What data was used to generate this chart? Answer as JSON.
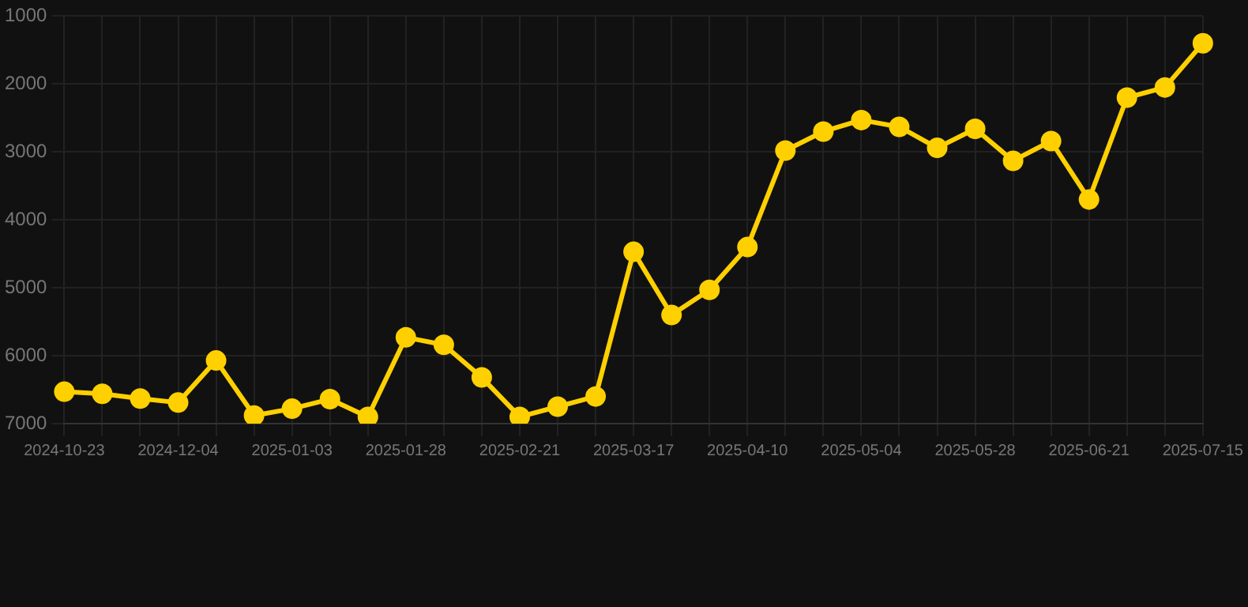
{
  "chart_data": {
    "type": "line",
    "categories": [
      "2024-10-23",
      null,
      null,
      "2024-12-04",
      null,
      null,
      "2025-01-03",
      null,
      null,
      "2025-01-28",
      null,
      null,
      "2025-02-21",
      null,
      null,
      "2025-03-17",
      null,
      null,
      "2025-04-10",
      null,
      null,
      "2025-05-04",
      null,
      null,
      "2025-05-28",
      null,
      null,
      "2025-06-21",
      null,
      null,
      "2025-07-15"
    ],
    "series": [
      {
        "color": "#ffd000",
        "values": [
          6530,
          6560,
          6630,
          6690,
          6070,
          6880,
          6780,
          6640,
          6900,
          5730,
          5840,
          6320,
          6900,
          6750,
          6600,
          4470,
          5400,
          5030,
          4400,
          2980,
          2700,
          2530,
          2630,
          2940,
          2660,
          3130,
          2840,
          3700,
          2200,
          2050,
          1400
        ]
      }
    ],
    "ylim": [
      7000,
      1000
    ],
    "yticks": [
      1000,
      2000,
      3000,
      4000,
      5000,
      6000,
      7000
    ],
    "grid": true,
    "marker": "circle",
    "line_style": "solid"
  }
}
